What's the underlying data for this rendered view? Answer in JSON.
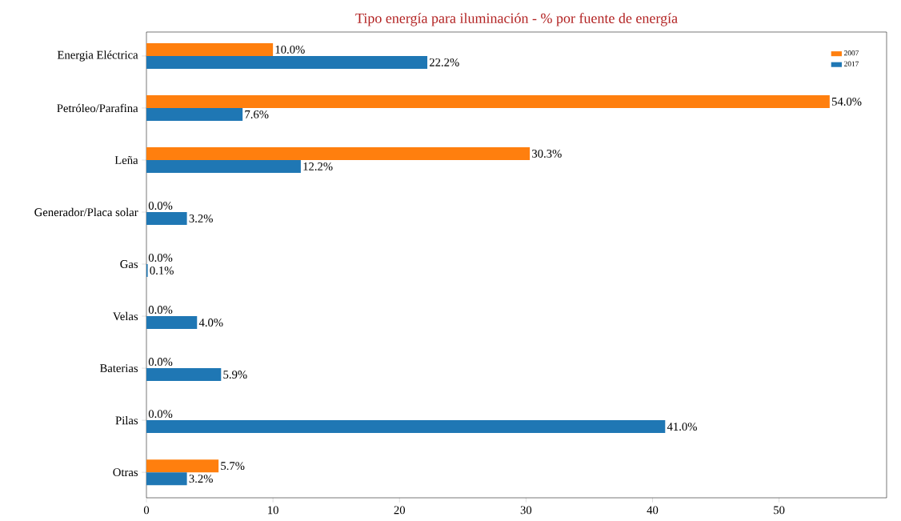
{
  "chart_data": {
    "type": "bar",
    "orientation": "horizontal",
    "title": "Tipo energía para iluminación - % por fuente de energía",
    "categories": [
      "Energia Eléctrica",
      "Petróleo/Parafina",
      "Leña",
      "Generador/Placa solar",
      "Gas",
      "Velas",
      "Baterias",
      "Pilas",
      "Otras"
    ],
    "series": [
      {
        "name": "2007",
        "color": "#ff7f0e",
        "values": [
          10.0,
          54.0,
          30.3,
          0.0,
          0.0,
          0.0,
          0.0,
          0.0,
          5.7
        ],
        "value_labels": [
          "10.0%",
          "54.0%",
          "30.3%",
          "0.0%",
          "0.0%",
          "0.0%",
          "0.0%",
          "0.0%",
          "5.7%"
        ]
      },
      {
        "name": "2017",
        "color": "#1f77b4",
        "values": [
          22.2,
          7.6,
          12.2,
          3.2,
          0.1,
          4.0,
          5.9,
          41.0,
          3.2
        ],
        "value_labels": [
          "22.2%",
          "7.6%",
          "12.2%",
          "3.2%",
          "0.1%",
          "4.0%",
          "5.9%",
          "41.0%",
          "3.2%"
        ]
      }
    ],
    "xlim": [
      0,
      58.5
    ],
    "xticks": [
      0,
      10,
      20,
      30,
      40,
      50
    ],
    "legend": "top right",
    "grid": false
  }
}
